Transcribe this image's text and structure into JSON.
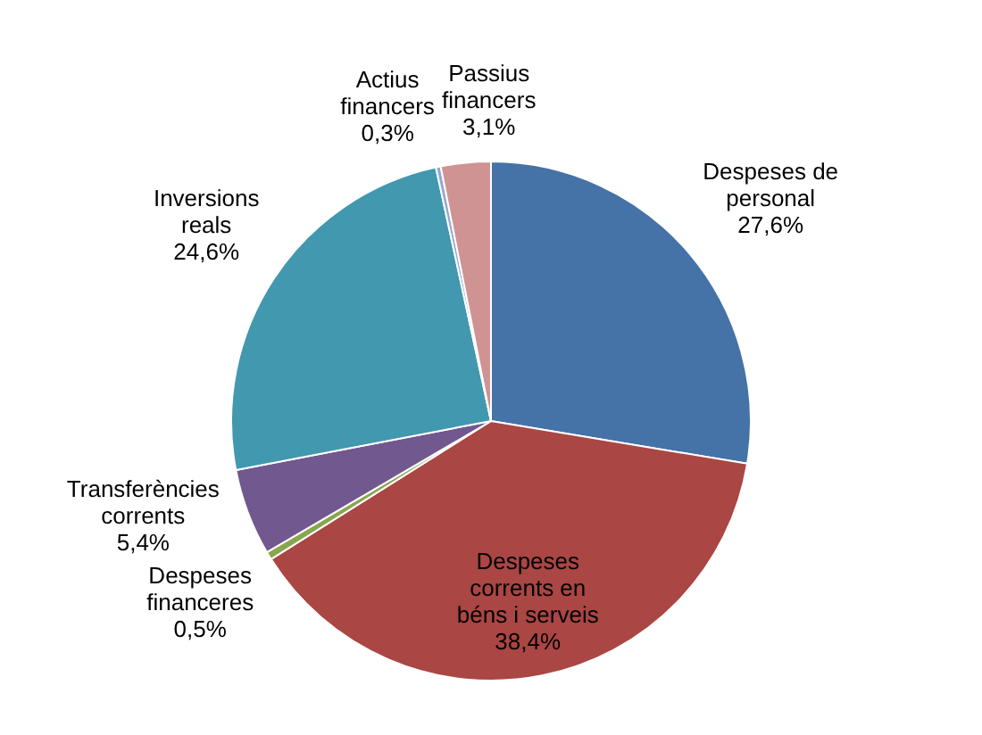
{
  "chart_data": {
    "type": "pie",
    "categories": [
      "Despeses de personal",
      "Despeses corrents en béns i serveis",
      "Despeses financeres",
      "Transferències corrents",
      "Inversions reals",
      "Actius financers",
      "Passius financers"
    ],
    "values": [
      27.6,
      38.4,
      0.5,
      5.4,
      24.6,
      0.3,
      3.1
    ],
    "value_labels": [
      "27,6%",
      "38,4%",
      "0,5%",
      "5,4%",
      "24,6%",
      "0,3%",
      "3,1%"
    ],
    "colors": [
      "#4572a7",
      "#aa4643",
      "#89a54e",
      "#71588f",
      "#4198af",
      "#93a9cf",
      "#d09393"
    ],
    "legend": false
  }
}
